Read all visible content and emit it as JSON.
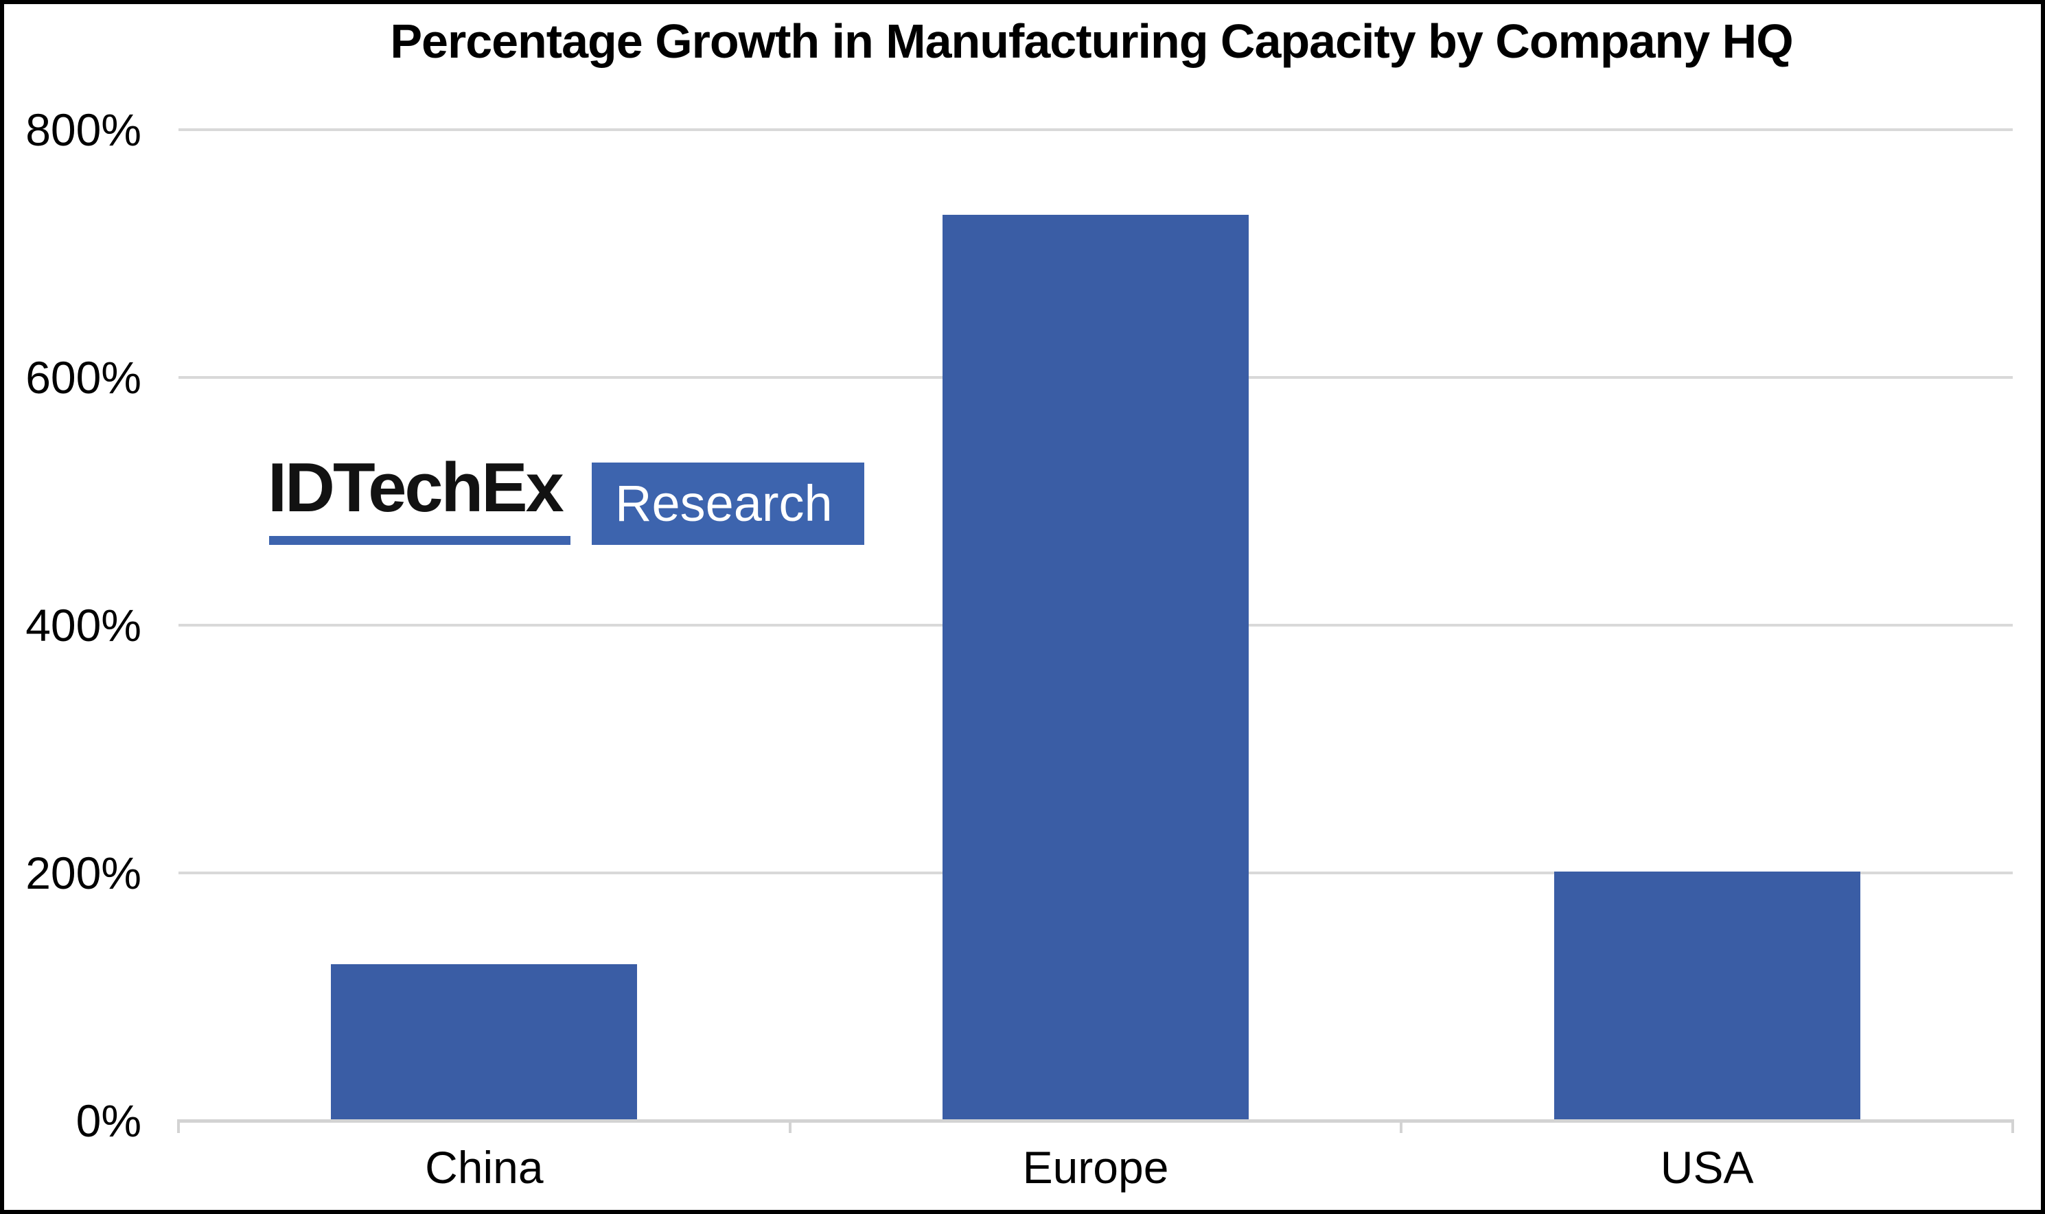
{
  "frame": {
    "border_color": "#000000",
    "background_color": "#ffffff"
  },
  "logo": {
    "wordmark": "IDTechEx",
    "research_label": "Research",
    "blue": "#3D64AE",
    "wordmark_color": "#121212",
    "research_text_color": "#ffffff"
  },
  "chart_data": {
    "type": "bar",
    "title": "Percentage Growth in Manufacturing Capacity by Company HQ",
    "categories": [
      "China",
      "Europe",
      "USA"
    ],
    "values": [
      125,
      730,
      200
    ],
    "unit": "%",
    "xlabel": "",
    "ylabel": "",
    "ylim": [
      0,
      800
    ],
    "ytick_step": 200,
    "ytick_labels": [
      "0%",
      "200%",
      "400%",
      "600%",
      "800%"
    ],
    "grid": true,
    "legend": false,
    "bar_color": "#3A5DA5",
    "gridline_color": "#D9D9D9",
    "axis_line_color": "#D3D3D3",
    "text_color": "#000000"
  }
}
